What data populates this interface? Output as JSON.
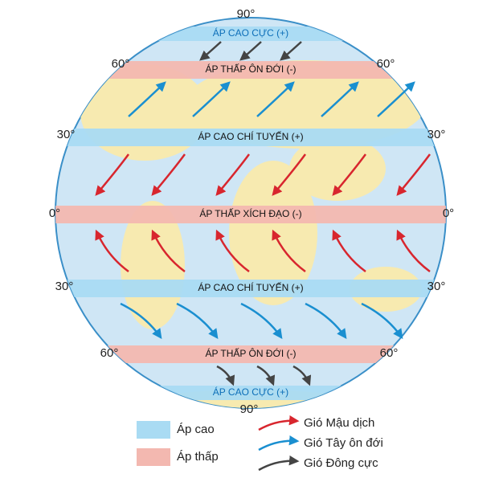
{
  "top_latitude": "90°",
  "bottom_latitude": "90°",
  "latitude_rows": [
    {
      "left": "60°",
      "right": "60°"
    },
    {
      "left": "30°",
      "right": "30°"
    },
    {
      "left": "0°",
      "right": "0°"
    },
    {
      "left": "30°",
      "right": "30°"
    },
    {
      "left": "60°",
      "right": "60°"
    }
  ],
  "belts": [
    {
      "label": "ÁP CAO CỰC (+)",
      "kind": "high"
    },
    {
      "label": "ÁP THẤP ÔN ĐỚI (-)",
      "kind": "low"
    },
    {
      "label": "ÁP CAO CHÍ TUYẾN (+)",
      "kind": "high"
    },
    {
      "label": "ÁP THẤP XÍCH ĐẠO (-)",
      "kind": "low"
    },
    {
      "label": "ÁP CAO CHÍ TUYẾN (+)",
      "kind": "high"
    },
    {
      "label": "ÁP THẤP ÔN ĐỚI (-)",
      "kind": "low"
    },
    {
      "label": "ÁP CAO CỰC (+)",
      "kind": "high"
    }
  ],
  "legend": {
    "high": "Áp cao",
    "low": "Áp thấp",
    "trade_wind": "Gió Mậu dịch",
    "westerly": "Gió Tây ôn đới",
    "polar_easterly": "Gió Đông cực"
  }
}
